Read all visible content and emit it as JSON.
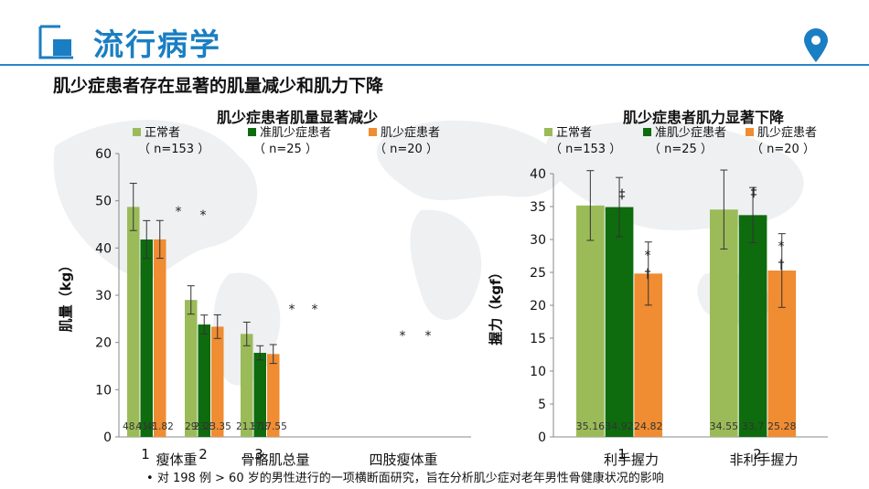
{
  "header": {
    "title": "流行病学"
  },
  "subtitle": "肌少症患者存在显著的肌量减少和肌力下降",
  "footnote": "对 198 例 > 60 岁的男性进行的一项横断面研究，旨在分析肌少症对老年男性骨健康状况的影响",
  "colors": {
    "accent": "#1a7ec2",
    "normal": "#9bbb59",
    "pre": "#0e6b0e",
    "sarco": "#f08c32"
  },
  "chart_data": [
    {
      "type": "bar",
      "title": "肌少症患者肌量显著减少",
      "ylabel": "肌量（kg）",
      "ylim": [
        0,
        60
      ],
      "yticks": [
        0,
        10,
        20,
        30,
        40,
        50,
        60
      ],
      "categories": [
        "瘦体重",
        "骨骼肌总量",
        "四肢瘦体重"
      ],
      "index_labels": [
        "1",
        "2",
        "3"
      ],
      "legend_position": "top",
      "series": [
        {
          "name": "正常者",
          "sub": "（ n=153 ）",
          "values": [
            48.7,
            29,
            21.8
          ],
          "errors": [
            5,
            3,
            2.5
          ],
          "labels": [
            "48.7",
            "29",
            "21.8"
          ]
        },
        {
          "name": "准肌少症患者",
          "sub": "（ n=25 ）",
          "values": [
            41.8,
            23.8,
            17.8
          ],
          "errors": [
            4,
            2,
            1.5
          ],
          "labels": [
            "41.8",
            "23.8",
            "17.8"
          ]
        },
        {
          "name": "肌少症患者",
          "sub": "（ n=20 ）",
          "values": [
            41.82,
            23.35,
            17.55
          ],
          "errors": [
            4,
            2.5,
            2
          ],
          "labels": [
            "41.82",
            "23.35",
            "17.55"
          ]
        }
      ],
      "annotations": [
        "*",
        "*",
        "*",
        "*",
        "*",
        "*"
      ]
    },
    {
      "type": "bar",
      "title": "肌少症患者肌力显著下降",
      "ylabel": "握力（kgf）",
      "ylim": [
        0,
        40
      ],
      "yticks": [
        0,
        5,
        10,
        15,
        20,
        25,
        30,
        35,
        40
      ],
      "categories": [
        "利手握力",
        "非利手握力"
      ],
      "index_labels": [
        "1",
        "2"
      ],
      "legend_position": "top",
      "series": [
        {
          "name": "正常者",
          "sub": "（ n=153 ）",
          "values": [
            35.16,
            34.55
          ],
          "errors": [
            5.3,
            6
          ],
          "labels": [
            "35.16",
            "34.55"
          ]
        },
        {
          "name": "准肌少症患者",
          "sub": "（ n=25 ）",
          "values": [
            34.92,
            33.7
          ],
          "errors": [
            4.5,
            4.2
          ],
          "labels": [
            "34.92",
            "33.7"
          ]
        },
        {
          "name": "肌少症患者",
          "sub": "（ n=20 ）",
          "values": [
            24.82,
            25.28
          ],
          "errors": [
            4.8,
            5.6
          ],
          "labels": [
            "24.82",
            "25.28"
          ]
        }
      ],
      "annotations": [
        "‡",
        "*",
        "†",
        "‡",
        "*",
        "†"
      ]
    }
  ]
}
